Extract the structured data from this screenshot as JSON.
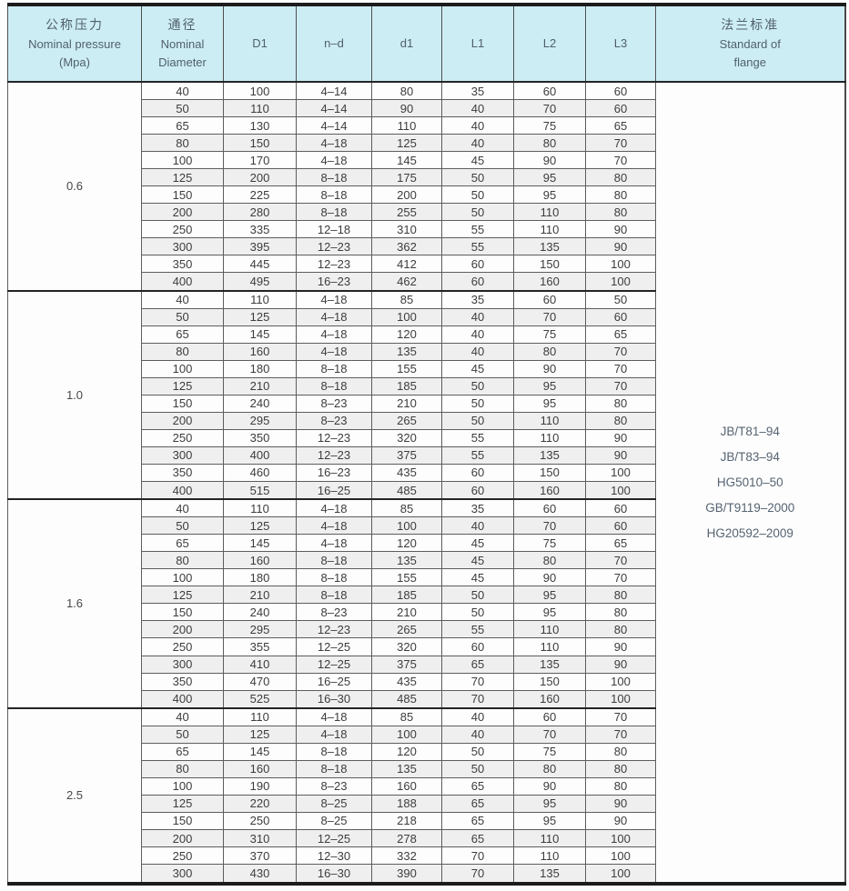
{
  "colors": {
    "header_bg": "#cdedf4",
    "alt_row_bg": "#efefef",
    "header_text": "#50606c",
    "data_text": "#3d3d3d",
    "frame_border": "#1c1c1c"
  },
  "table": {
    "headers": {
      "pressure": {
        "line1": "公称压力",
        "line2": "Nominal pressure",
        "line3": "(Mpa)"
      },
      "diameter": {
        "line1": "通径",
        "line2": "Nominal",
        "line3": "Diameter"
      },
      "d1_major": "D1",
      "n_d": "n–d",
      "d1_minor": "d1",
      "l1": "L1",
      "l2": "L2",
      "l3": "L3",
      "standard": {
        "line1": "法兰标准",
        "line2": "Standard of",
        "line3": "flange"
      }
    },
    "standards": [
      "JB/T81–94",
      "JB/T83–94",
      "HG5010–50",
      "GB/T9119–2000",
      "HG20592–2009"
    ],
    "groups": [
      {
        "pressure": "0.6",
        "rows": [
          [
            40,
            100,
            "4–14",
            80,
            35,
            60,
            60
          ],
          [
            50,
            110,
            "4–14",
            90,
            40,
            70,
            60
          ],
          [
            65,
            130,
            "4–14",
            110,
            40,
            75,
            65
          ],
          [
            80,
            150,
            "4–18",
            125,
            40,
            80,
            70
          ],
          [
            100,
            170,
            "4–18",
            145,
            45,
            90,
            70
          ],
          [
            125,
            200,
            "8–18",
            175,
            50,
            95,
            80
          ],
          [
            150,
            225,
            "8–18",
            200,
            50,
            95,
            80
          ],
          [
            200,
            280,
            "8–18",
            255,
            50,
            110,
            80
          ],
          [
            250,
            335,
            "12–18",
            310,
            55,
            110,
            90
          ],
          [
            300,
            395,
            "12–23",
            362,
            55,
            135,
            90
          ],
          [
            350,
            445,
            "12–23",
            412,
            60,
            150,
            100
          ],
          [
            400,
            495,
            "16–23",
            462,
            60,
            160,
            100
          ]
        ]
      },
      {
        "pressure": "1.0",
        "rows": [
          [
            40,
            110,
            "4–18",
            85,
            35,
            60,
            50
          ],
          [
            50,
            125,
            "4–18",
            100,
            40,
            70,
            60
          ],
          [
            65,
            145,
            "4–18",
            120,
            40,
            75,
            65
          ],
          [
            80,
            160,
            "4–18",
            135,
            40,
            80,
            70
          ],
          [
            100,
            180,
            "8–18",
            155,
            45,
            90,
            70
          ],
          [
            125,
            210,
            "8–18",
            185,
            50,
            95,
            70
          ],
          [
            150,
            240,
            "8–23",
            210,
            50,
            95,
            80
          ],
          [
            200,
            295,
            "8–23",
            265,
            50,
            110,
            80
          ],
          [
            250,
            350,
            "12–23",
            320,
            55,
            110,
            90
          ],
          [
            300,
            400,
            "12–23",
            375,
            55,
            135,
            90
          ],
          [
            350,
            460,
            "16–23",
            435,
            60,
            150,
            100
          ],
          [
            400,
            515,
            "16–25",
            485,
            60,
            160,
            100
          ]
        ]
      },
      {
        "pressure": "1.6",
        "rows": [
          [
            40,
            110,
            "4–18",
            85,
            35,
            60,
            60
          ],
          [
            50,
            125,
            "4–18",
            100,
            40,
            70,
            60
          ],
          [
            65,
            145,
            "4–18",
            120,
            45,
            75,
            65
          ],
          [
            80,
            160,
            "8–18",
            135,
            45,
            80,
            70
          ],
          [
            100,
            180,
            "8–18",
            155,
            45,
            90,
            70
          ],
          [
            125,
            210,
            "8–18",
            185,
            50,
            95,
            80
          ],
          [
            150,
            240,
            "8–23",
            210,
            50,
            95,
            80
          ],
          [
            200,
            295,
            "12–23",
            265,
            55,
            110,
            80
          ],
          [
            250,
            355,
            "12–25",
            320,
            60,
            110,
            90
          ],
          [
            300,
            410,
            "12–25",
            375,
            65,
            135,
            90
          ],
          [
            350,
            470,
            "16–25",
            435,
            70,
            150,
            100
          ],
          [
            400,
            525,
            "16–30",
            485,
            70,
            160,
            100
          ]
        ]
      },
      {
        "pressure": "2.5",
        "rows": [
          [
            40,
            110,
            "4–18",
            85,
            40,
            60,
            70
          ],
          [
            50,
            125,
            "4–18",
            100,
            40,
            70,
            70
          ],
          [
            65,
            145,
            "8–18",
            120,
            50,
            75,
            80
          ],
          [
            80,
            160,
            "8–18",
            135,
            50,
            80,
            80
          ],
          [
            100,
            190,
            "8–23",
            160,
            65,
            90,
            80
          ],
          [
            125,
            220,
            "8–25",
            188,
            65,
            95,
            90
          ],
          [
            150,
            250,
            "8–25",
            218,
            65,
            95,
            90
          ],
          [
            200,
            310,
            "12–25",
            278,
            65,
            110,
            100
          ],
          [
            250,
            370,
            "12–30",
            332,
            70,
            110,
            100
          ],
          [
            300,
            430,
            "16–30",
            390,
            70,
            135,
            100
          ]
        ]
      }
    ]
  }
}
